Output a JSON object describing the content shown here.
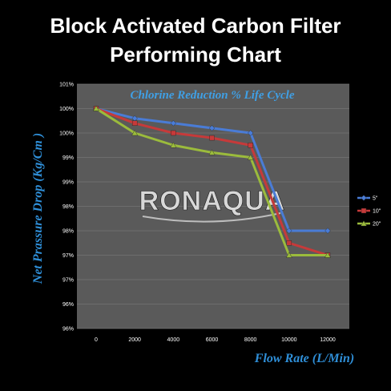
{
  "header": {
    "title_line1": "Block Activated Carbon Filter",
    "title_line2": "Performing Chart"
  },
  "watermark": "RONAQUA",
  "colors": {
    "background": "#000000",
    "plot_area": "#5a5a5a",
    "gridline": "#747474",
    "axis_title": "#2f8fd8",
    "inner_title": "#3fa0e6"
  },
  "chart_data": {
    "type": "line",
    "title": "Chlorine Reduction % Life Cycle",
    "xlabel": "Flow Rate (L/Min)",
    "ylabel": "Net Prassure Drop (Kg/Cm )",
    "x": [
      0,
      2000,
      4000,
      6000,
      8000,
      10000,
      12000
    ],
    "x_tick_labels": [
      "0",
      "2000",
      "4000",
      "6000",
      "8000",
      "10000",
      "12000"
    ],
    "y_tick_labels": [
      "101%",
      "100%",
      "100%",
      "99%",
      "99%",
      "98%",
      "98%",
      "97%",
      "97%",
      "96%",
      "96%"
    ],
    "ylim": [
      96,
      101
    ],
    "grid": true,
    "legend_position": "right",
    "series": [
      {
        "name": "5\"",
        "color": "#4a7cd6",
        "marker": "diamond",
        "values": [
          100.5,
          100.3,
          100.2,
          100.1,
          100.0,
          98.0,
          98.0
        ]
      },
      {
        "name": "10\"",
        "color": "#c63a3a",
        "marker": "square",
        "values": [
          100.5,
          100.2,
          100.0,
          99.9,
          99.75,
          97.75,
          97.5
        ]
      },
      {
        "name": "20\"",
        "color": "#9bbb3c",
        "marker": "triangle",
        "values": [
          100.5,
          100.0,
          99.75,
          99.6,
          99.5,
          97.5,
          97.5
        ]
      }
    ]
  }
}
